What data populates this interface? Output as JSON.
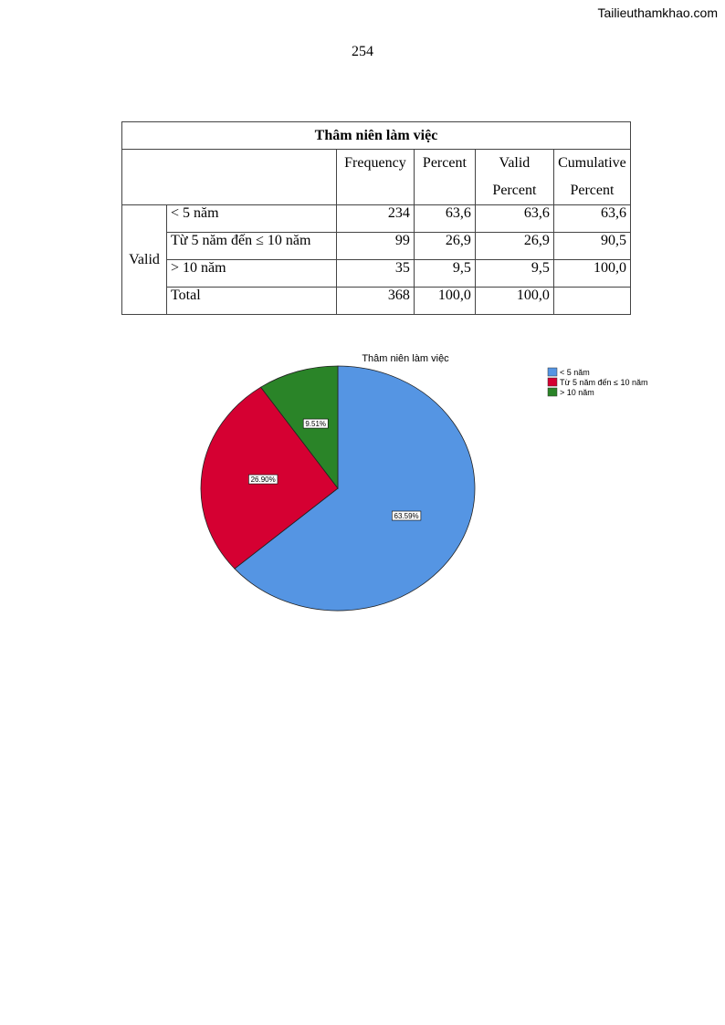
{
  "header": {
    "watermark": "Tailieuthamkhao.com",
    "page_number": "254"
  },
  "table": {
    "title": "Thâm niên làm việc",
    "columns": {
      "frequency": "Frequency",
      "percent": "Percent",
      "valid_percent_1": "Valid",
      "valid_percent_2": "Percent",
      "cumulative_1": "Cumulative",
      "cumulative_2": "Percent"
    },
    "group_label": "Valid",
    "rows": [
      {
        "label": "< 5 năm",
        "frequency": "234",
        "percent": "63,6",
        "valid_percent": "63,6",
        "cumulative": "63,6"
      },
      {
        "label": "Từ 5 năm đến ≤ 10 năm",
        "frequency": "99",
        "percent": "26,9",
        "valid_percent": "26,9",
        "cumulative": "90,5"
      },
      {
        "label": "> 10 năm",
        "frequency": "35",
        "percent": "9,5",
        "valid_percent": "9,5",
        "cumulative": "100,0"
      },
      {
        "label": "Total",
        "frequency": "368",
        "percent": "100,0",
        "valid_percent": "100,0",
        "cumulative": ""
      }
    ]
  },
  "chart_data": {
    "type": "pie",
    "title": "Thâm niên làm việc",
    "legend_position": "top-right",
    "slices": [
      {
        "label": "< 5 năm",
        "value": 63.59,
        "display": "63.59%",
        "color": "#5595e3"
      },
      {
        "label": "Từ 5 năm đến ≤ 10 năm",
        "value": 26.9,
        "display": "26.90%",
        "color": "#d50032"
      },
      {
        "label": "> 10 năm",
        "value": 9.51,
        "display": "9.51%",
        "color": "#2a8428"
      }
    ]
  }
}
